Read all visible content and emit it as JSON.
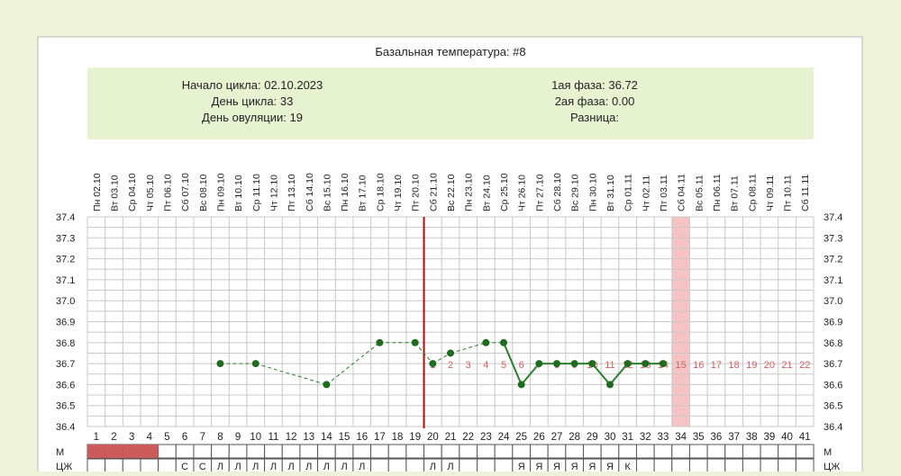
{
  "colors": {
    "outer_bg": "#eef2d8",
    "card_bg": "#ffffff",
    "info_bg": "#e6f2d0",
    "grid": "#c8c8c8",
    "line": "#2e7d2e",
    "point": "#1f6b1f",
    "ovulation_line": "#cc0000",
    "highlight_col": "#f6c3c3",
    "post_day_numbers": "#d06060",
    "menses": "#cc5b5b"
  },
  "chart_data": {
    "type": "line",
    "title": "Базальная температура: #8",
    "info": {
      "cycle_start": "Начало цикла: 02.10.2023",
      "cycle_day": "День цикла: 33",
      "ovulation_day": "День овуляции: 19",
      "phase1": "1ая фаза: 36.72",
      "phase2": "2ая фаза: 0.00",
      "difference": "Разница:"
    },
    "dates": [
      "Пн 02.10",
      "Вт 03.10",
      "Ср 04.10",
      "Чт 05.10",
      "Пт 06.10",
      "Сб 07.10",
      "Вс 08.10",
      "Пн 09.10",
      "Вт 10.10",
      "Ср 11.10",
      "Чт 12.10",
      "Пт 13.10",
      "Сб 14.10",
      "Вс 15.10",
      "Пн 16.10",
      "Вт 17.10",
      "Ср 18.10",
      "Чт 19.10",
      "Пт 20.10",
      "Сб 21.10",
      "Вс 22.10",
      "Пн 23.10",
      "Вт 24.10",
      "Ср 25.10",
      "Чт 26.10",
      "Пт 27.10",
      "Сб 28.10",
      "Вс 29.10",
      "Пн 30.10",
      "Вт 31.10",
      "Ср 01.11",
      "Чт 02.11",
      "Пт 03.11",
      "Сб 04.11",
      "Вс 05.11",
      "Пн 06.11",
      "Вт 07.11",
      "Ср 08.11",
      "Чт 09.11",
      "Пт 10.11",
      "Сб 11.11"
    ],
    "day_numbers": [
      "1",
      "2",
      "3",
      "4",
      "5",
      "6",
      "7",
      "8",
      "9",
      "10",
      "11",
      "12",
      "13",
      "14",
      "15",
      "16",
      "17",
      "18",
      "19",
      "20",
      "21",
      "22",
      "23",
      "24",
      "25",
      "26",
      "27",
      "28",
      "29",
      "30",
      "31",
      "32",
      "33",
      "34",
      "35",
      "36",
      "37",
      "38",
      "39",
      "40",
      "41"
    ],
    "y_ticks": [
      "37.4",
      "37.3",
      "37.2",
      "37.1",
      "37.0",
      "36.9",
      "36.8",
      "36.7",
      "36.6",
      "36.5",
      "36.4"
    ],
    "ylim": [
      36.4,
      37.4
    ],
    "points": [
      {
        "x": 8,
        "y": 36.7
      },
      {
        "x": 10,
        "y": 36.7
      },
      {
        "x": 14,
        "y": 36.6
      },
      {
        "x": 17,
        "y": 36.8
      },
      {
        "x": 19,
        "y": 36.8
      },
      {
        "x": 20,
        "y": 36.7
      },
      {
        "x": 21,
        "y": 36.75
      },
      {
        "x": 23,
        "y": 36.8
      },
      {
        "x": 24,
        "y": 36.8
      },
      {
        "x": 25,
        "y": 36.6
      },
      {
        "x": 26,
        "y": 36.7
      },
      {
        "x": 27,
        "y": 36.7
      },
      {
        "x": 28,
        "y": 36.7
      },
      {
        "x": 29,
        "y": 36.7
      },
      {
        "x": 30,
        "y": 36.6
      },
      {
        "x": 31,
        "y": 36.7
      },
      {
        "x": 32,
        "y": 36.7
      },
      {
        "x": 33,
        "y": 36.7
      }
    ],
    "ovulation_day": 19,
    "highlight_day": 34,
    "post_ovulation_labels": {
      "start_day": 20,
      "labels": [
        "1",
        "2",
        "3",
        "4",
        "5",
        "6",
        "7",
        "8",
        "9",
        "10",
        "11",
        "12",
        "13",
        "14",
        "15",
        "16",
        "17",
        "18",
        "19",
        "20",
        "21",
        "22"
      ]
    },
    "rows": {
      "m_label": "М",
      "cj_label": "ЦЖ",
      "menses_days": [
        1,
        2,
        3,
        4
      ],
      "cj_marks": [
        {
          "day": 6,
          "mark": "С"
        },
        {
          "day": 7,
          "mark": "С"
        },
        {
          "day": 8,
          "mark": "Л"
        },
        {
          "day": 9,
          "mark": "Л"
        },
        {
          "day": 10,
          "mark": "Л"
        },
        {
          "day": 11,
          "mark": "Л"
        },
        {
          "day": 12,
          "mark": "Л"
        },
        {
          "day": 13,
          "mark": "Л"
        },
        {
          "day": 14,
          "mark": "Л"
        },
        {
          "day": 15,
          "mark": "Л"
        },
        {
          "day": 16,
          "mark": "Л"
        },
        {
          "day": 20,
          "mark": "Л"
        },
        {
          "day": 21,
          "mark": "Л"
        },
        {
          "day": 25,
          "mark": "Я"
        },
        {
          "day": 26,
          "mark": "Я"
        },
        {
          "day": 27,
          "mark": "Я"
        },
        {
          "day": 28,
          "mark": "Я"
        },
        {
          "day": 29,
          "mark": "Я"
        },
        {
          "day": 30,
          "mark": "Я"
        },
        {
          "day": 31,
          "mark": "К"
        }
      ]
    }
  }
}
